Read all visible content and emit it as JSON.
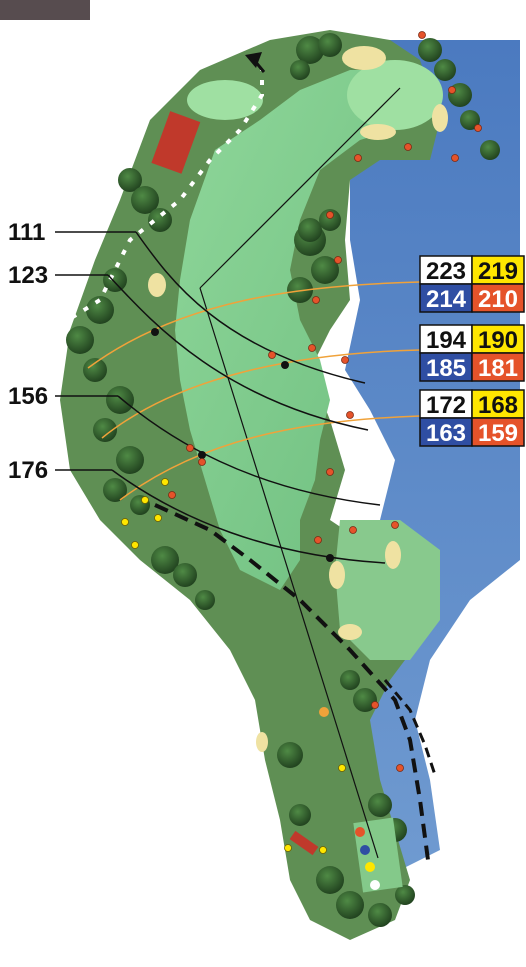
{
  "hole_map": {
    "carry_markers": [
      {
        "label": "111"
      },
      {
        "label": "123"
      },
      {
        "label": "156"
      },
      {
        "label": "176"
      }
    ],
    "yardage_boxes": [
      {
        "black": "223",
        "yellow": "219",
        "blue": "214",
        "red": "210"
      },
      {
        "black": "194",
        "yellow": "190",
        "blue": "185",
        "red": "181"
      },
      {
        "black": "172",
        "yellow": "168",
        "blue": "163",
        "red": "159"
      }
    ]
  },
  "colors": {
    "water": "#4f7fbf",
    "fairway": "#7ec889",
    "rough": "#5e8f4f",
    "trees": "#2e5a2a",
    "tee_black": "#111111",
    "tee_yellow": "#ffe600",
    "tee_blue": "#2f4ea3",
    "tee_red": "#e5532a",
    "arc_line": "#f0a23a"
  }
}
